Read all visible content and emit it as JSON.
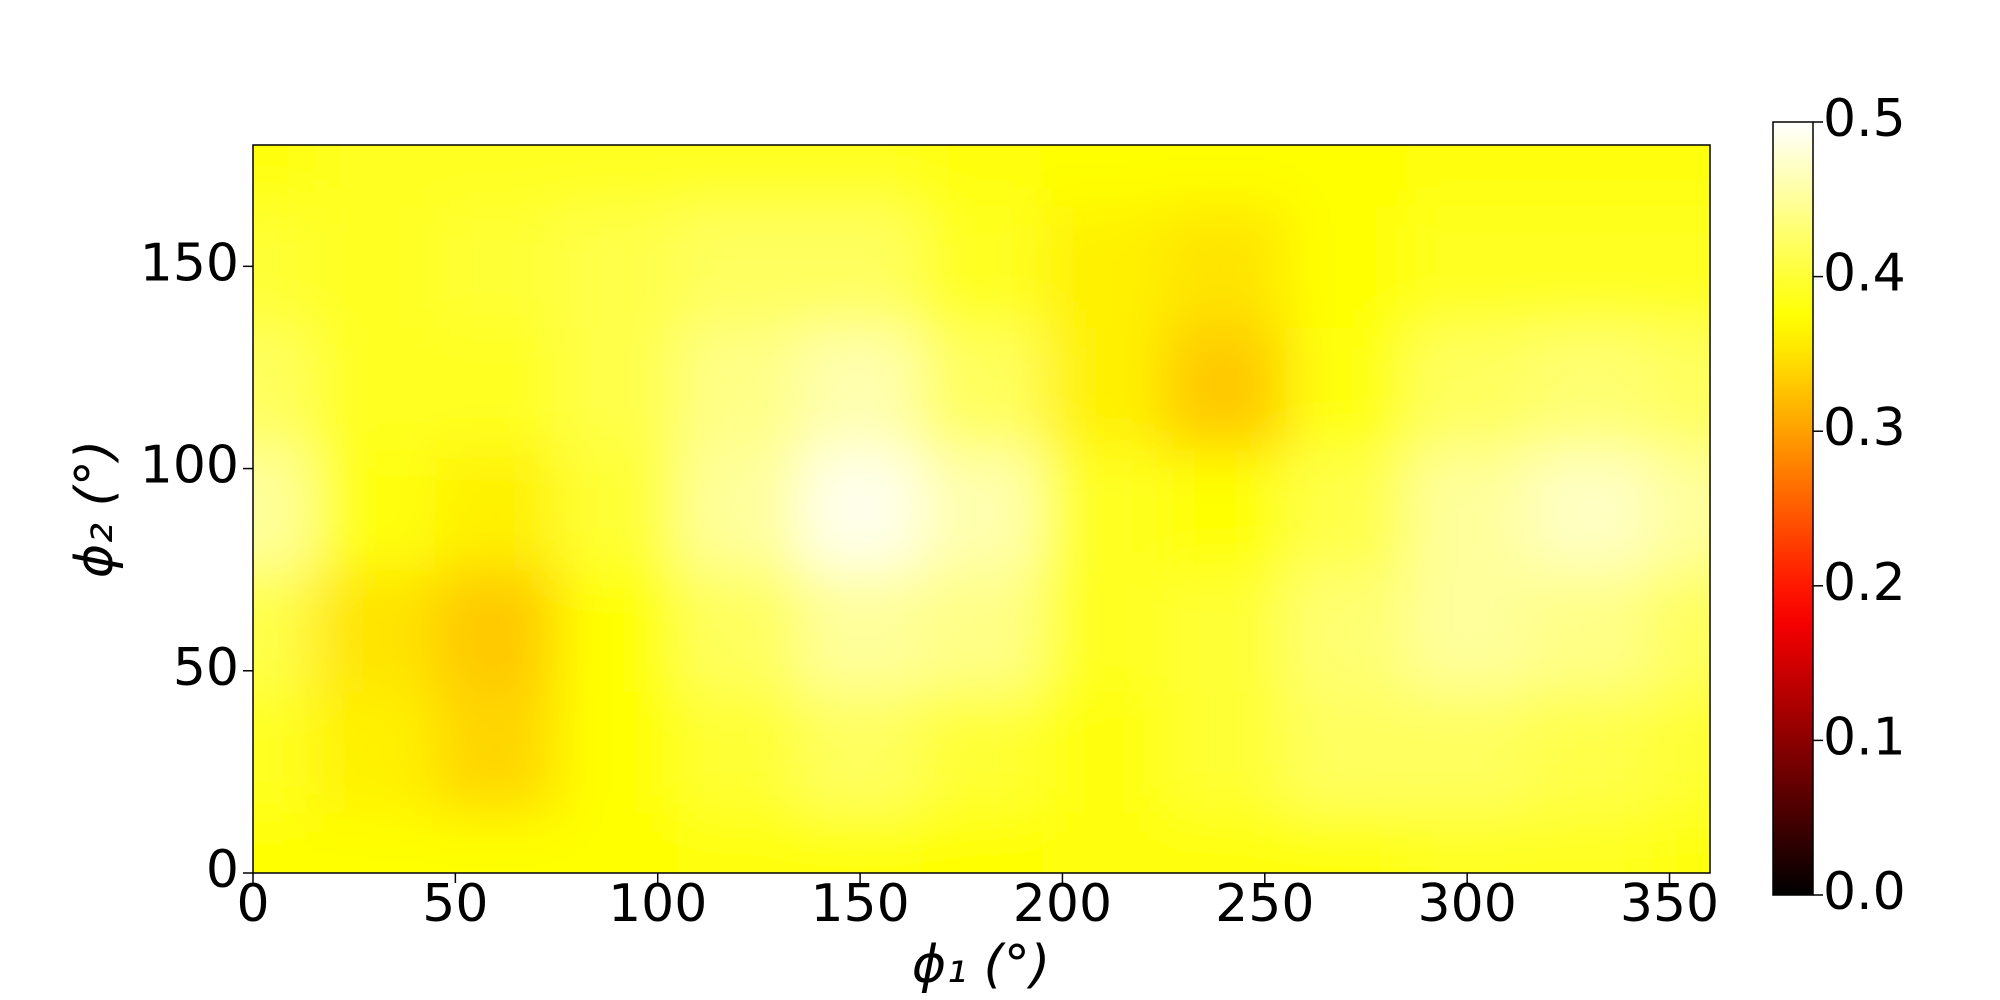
{
  "chart_data": {
    "type": "heatmap",
    "xlabel": "ϕ₁ (°)",
    "ylabel": "ϕ₂ (°)",
    "x": [
      0,
      30,
      60,
      90,
      120,
      150,
      180,
      210,
      240,
      270,
      300,
      330,
      360
    ],
    "y": [
      0,
      30,
      60,
      90,
      120,
      150,
      180
    ],
    "z": [
      [
        0.37,
        0.37,
        0.37,
        0.37,
        0.38,
        0.38,
        0.37,
        0.38,
        0.38,
        0.38,
        0.39,
        0.39,
        0.38
      ],
      [
        0.39,
        0.36,
        0.34,
        0.37,
        0.4,
        0.42,
        0.4,
        0.38,
        0.4,
        0.42,
        0.42,
        0.41,
        0.4
      ],
      [
        0.41,
        0.35,
        0.33,
        0.37,
        0.42,
        0.45,
        0.44,
        0.39,
        0.4,
        0.43,
        0.45,
        0.44,
        0.42
      ],
      [
        0.45,
        0.38,
        0.36,
        0.4,
        0.45,
        0.49,
        0.46,
        0.39,
        0.37,
        0.41,
        0.45,
        0.47,
        0.45
      ],
      [
        0.42,
        0.39,
        0.39,
        0.41,
        0.44,
        0.46,
        0.42,
        0.36,
        0.33,
        0.38,
        0.42,
        0.43,
        0.42
      ],
      [
        0.4,
        0.39,
        0.4,
        0.41,
        0.42,
        0.42,
        0.39,
        0.36,
        0.35,
        0.37,
        0.39,
        0.39,
        0.39
      ],
      [
        0.38,
        0.39,
        0.39,
        0.39,
        0.39,
        0.39,
        0.38,
        0.37,
        0.37,
        0.37,
        0.38,
        0.38,
        0.38
      ]
    ],
    "colormap": "hot",
    "xlim": [
      0,
      360
    ],
    "xticks": [
      0,
      50,
      100,
      150,
      200,
      250,
      300,
      350
    ],
    "ylim": [
      0,
      180
    ],
    "yticks": [
      0,
      50,
      100,
      150
    ],
    "clim": [
      0,
      0.5
    ],
    "cticks": [
      {
        "value": 0,
        "label": "0.0"
      },
      0.1,
      0.2,
      0.3,
      0.4,
      {
        "value": 0.5,
        "label": "0.5"
      }
    ]
  }
}
